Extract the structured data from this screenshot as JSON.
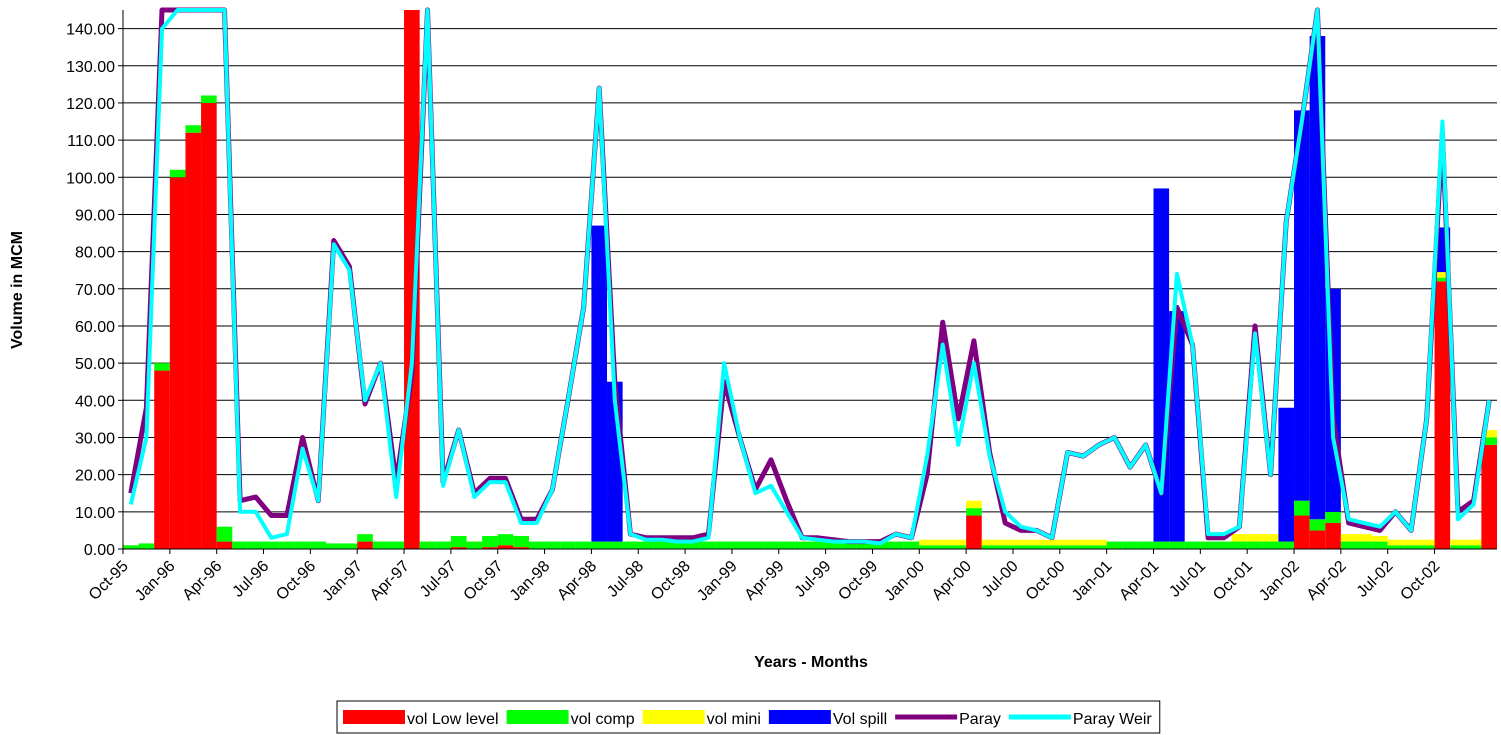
{
  "chart_data": {
    "type": "bar",
    "title": "",
    "xlabel": "Years - Months",
    "ylabel": "Volume in MCM",
    "ylim": [
      0,
      145
    ],
    "yticks": [
      0,
      10,
      20,
      30,
      40,
      50,
      60,
      70,
      80,
      90,
      100,
      110,
      120,
      130,
      140
    ],
    "ytick_labels": [
      "0.00",
      "10.00",
      "20.00",
      "30.00",
      "40.00",
      "50.00",
      "60.00",
      "70.00",
      "80.00",
      "90.00",
      "100.00",
      "110.00",
      "120.00",
      "130.00",
      "140.00"
    ],
    "grid": true,
    "legend_position": "bottom",
    "stacked": true,
    "categories": [
      "Oct-95",
      "Nov-95",
      "Dec-95",
      "Jan-96",
      "Feb-96",
      "Mar-96",
      "Apr-96",
      "May-96",
      "Jun-96",
      "Jul-96",
      "Aug-96",
      "Sep-96",
      "Oct-96",
      "Nov-96",
      "Dec-96",
      "Jan-97",
      "Feb-97",
      "Mar-97",
      "Apr-97",
      "May-97",
      "Jun-97",
      "Jul-97",
      "Aug-97",
      "Sep-97",
      "Oct-97",
      "Nov-97",
      "Dec-97",
      "Jan-98",
      "Feb-98",
      "Mar-98",
      "Apr-98",
      "May-98",
      "Jun-98",
      "Jul-98",
      "Aug-98",
      "Sep-98",
      "Oct-98",
      "Nov-98",
      "Dec-98",
      "Jan-99",
      "Feb-99",
      "Mar-99",
      "Apr-99",
      "May-99",
      "Jun-99",
      "Jul-99",
      "Aug-99",
      "Sep-99",
      "Oct-99",
      "Nov-99",
      "Dec-99",
      "Jan-00",
      "Feb-00",
      "Mar-00",
      "Apr-00",
      "May-00",
      "Jun-00",
      "Jul-00",
      "Aug-00",
      "Sep-00",
      "Oct-00",
      "Nov-00",
      "Dec-00",
      "Jan-01",
      "Feb-01",
      "Mar-01",
      "Apr-01",
      "May-01",
      "Jun-01",
      "Jul-01",
      "Aug-01",
      "Sep-01",
      "Oct-01",
      "Nov-01",
      "Dec-01",
      "Jan-02",
      "Feb-02",
      "Mar-02",
      "Apr-02",
      "May-02",
      "Jun-02",
      "Jul-02",
      "Aug-02",
      "Sep-02",
      "Oct-02",
      "Nov-02",
      "Dec-02",
      "Jan-03"
    ],
    "xtick_labels": [
      "Oct-95",
      "Jan-96",
      "Apr-96",
      "Jul-96",
      "Oct-96",
      "Jan-97",
      "Apr-97",
      "Jul-97",
      "Oct-97",
      "Jan-98",
      "Apr-98",
      "Jul-98",
      "Oct-98",
      "Jan-99",
      "Apr-99",
      "Jul-99",
      "Oct-99",
      "Jan-00",
      "Apr-00",
      "Jul-00",
      "Oct-00",
      "Jan-01",
      "Apr-01",
      "Jul-01",
      "Oct-01",
      "Jan-02",
      "Apr-02",
      "Jul-02",
      "Oct-02"
    ],
    "series": [
      {
        "name": "vol Low level",
        "kind": "bar",
        "color": "#ff0000",
        "values": [
          0,
          0,
          48,
          100,
          112,
          120,
          2,
          0,
          0,
          0,
          0,
          0,
          0,
          0,
          0,
          2,
          0,
          0,
          145,
          0,
          0,
          0.5,
          0,
          0.5,
          1,
          0.5,
          0,
          0,
          0,
          0,
          0,
          0,
          0,
          0,
          0,
          0,
          0,
          0,
          0,
          0,
          0,
          0,
          0,
          0,
          0,
          0,
          0,
          0,
          0,
          0,
          0,
          0,
          0,
          0,
          9,
          0,
          0,
          0,
          0,
          0,
          0,
          0,
          0,
          0,
          0,
          0,
          0,
          0,
          0,
          0,
          0,
          0,
          0,
          0,
          0,
          9,
          5,
          7,
          0,
          0,
          0,
          0,
          0,
          0,
          72,
          0,
          0,
          28
        ]
      },
      {
        "name": "vol comp",
        "kind": "bar",
        "color": "#00ff00",
        "values": [
          1,
          1.5,
          2,
          2,
          2,
          2,
          4,
          2,
          2,
          2,
          2,
          2,
          2,
          1.5,
          1.5,
          2,
          2,
          2,
          2,
          2,
          2,
          3,
          2,
          3,
          3,
          3,
          2,
          2,
          2,
          2,
          2,
          2,
          2,
          2,
          2,
          2,
          2,
          2,
          2,
          2,
          2,
          2,
          2,
          2,
          2,
          2,
          2,
          2,
          2,
          2,
          2,
          1,
          1,
          1,
          2,
          1,
          1,
          1,
          1,
          1,
          1,
          1,
          1,
          2,
          2,
          2,
          2,
          2,
          2,
          2,
          2,
          2,
          2,
          2,
          2,
          4,
          3,
          3,
          2,
          2,
          2,
          1,
          1,
          1,
          1,
          1,
          1,
          2
        ]
      },
      {
        "name": "vol mini",
        "kind": "bar",
        "color": "#ffff00",
        "values": [
          0,
          0,
          0,
          0,
          0,
          0,
          0,
          0,
          0,
          0,
          0,
          0,
          0,
          0,
          0,
          0,
          0,
          0,
          0,
          0,
          0,
          0,
          0,
          0,
          0,
          0,
          0,
          0,
          0,
          0,
          0,
          0,
          0,
          0,
          0,
          0,
          0,
          0,
          0,
          0,
          0,
          0,
          0,
          0,
          0,
          0,
          0,
          0,
          0,
          0,
          0,
          1.5,
          1.5,
          1.5,
          2,
          1.5,
          1.5,
          1.5,
          1.5,
          1.5,
          1.5,
          1.5,
          1.5,
          0,
          0,
          0,
          0,
          0,
          0,
          0,
          0,
          2,
          2,
          2,
          0,
          0,
          0,
          0,
          2,
          2,
          1.5,
          1.5,
          1.5,
          1.5,
          1.5,
          1.5,
          1.5,
          2
        ]
      },
      {
        "name": "Vol spill",
        "kind": "bar",
        "color": "#0000ff",
        "values": [
          0,
          0,
          0,
          0,
          0,
          0,
          0,
          0,
          0,
          0,
          0,
          0,
          0,
          0,
          0,
          0,
          0,
          0,
          0,
          0,
          0,
          0,
          0,
          0,
          0,
          0,
          0,
          0,
          0,
          0,
          85,
          43,
          0,
          0,
          0,
          0,
          0,
          0,
          0,
          0,
          0,
          0,
          0,
          0,
          0,
          0,
          0,
          0,
          0,
          0,
          0,
          0,
          0,
          0,
          0,
          0,
          0,
          0,
          0,
          0,
          0,
          0,
          0,
          0,
          0,
          0,
          95,
          62,
          0,
          0,
          0,
          0,
          0,
          0,
          36,
          105,
          130,
          60,
          0,
          0,
          0,
          0,
          0,
          0,
          12,
          0,
          0,
          0
        ]
      },
      {
        "name": "Paray",
        "kind": "line",
        "color": "#800080",
        "values": [
          15,
          38,
          145,
          145,
          145,
          145,
          145,
          13,
          14,
          9,
          9,
          30,
          13,
          83,
          76,
          39,
          50,
          18,
          47,
          145,
          18,
          32,
          15,
          19,
          19,
          8,
          8,
          16,
          40,
          65,
          124,
          45,
          4,
          3,
          3,
          3,
          3,
          4,
          45,
          30,
          16,
          24,
          13,
          3,
          3,
          2.5,
          2,
          2,
          2,
          4,
          3,
          20,
          61,
          35,
          56,
          26,
          7,
          5,
          5,
          3,
          26,
          25,
          28,
          30,
          22,
          28,
          15,
          65,
          55,
          3,
          3,
          6,
          60,
          20,
          88,
          115,
          145,
          35,
          7,
          6,
          5,
          10,
          5,
          35,
          112,
          10,
          13,
          40
        ]
      },
      {
        "name": "Paray Weir",
        "kind": "line",
        "color": "#00ffff",
        "values": [
          12,
          30,
          140,
          145,
          145,
          145,
          145,
          10,
          10,
          3,
          4,
          27,
          13,
          82,
          75,
          40,
          50,
          14,
          50,
          145,
          17,
          32,
          14,
          18,
          18,
          7,
          7,
          16,
          40,
          65,
          124,
          40,
          4,
          2.5,
          2.5,
          2,
          2,
          3,
          50,
          30,
          15,
          17,
          10,
          3,
          2.5,
          2,
          2,
          2,
          1.5,
          4,
          3,
          25,
          55,
          28,
          50,
          25,
          10,
          6,
          5,
          3,
          26,
          25,
          28,
          30,
          22,
          28,
          15,
          74,
          55,
          4,
          4,
          6,
          58,
          20,
          88,
          115,
          145,
          30,
          8,
          7,
          6,
          10,
          5,
          35,
          115,
          8,
          12,
          40
        ]
      }
    ]
  }
}
